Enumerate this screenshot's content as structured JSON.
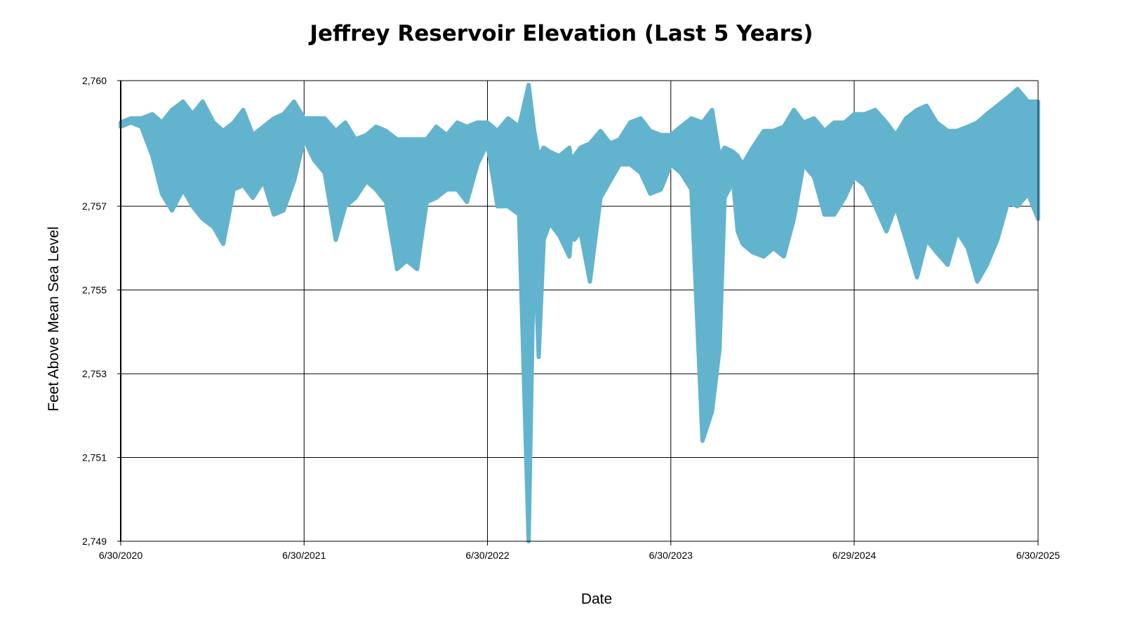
{
  "chart_data": {
    "type": "area",
    "title": "Jeffrey Reservoir Elevation (Last 5 Years)",
    "xlabel": "Date",
    "ylabel": "Feet Above Mean Sea Level",
    "ylim": [
      2749,
      2760
    ],
    "yticks": [
      2749,
      2751,
      2753,
      2755,
      2757,
      2760
    ],
    "ytick_labels": [
      "2,749",
      "2,751",
      "2,753",
      "2,755",
      "2,757",
      "2,760"
    ],
    "xlim": [
      "2020-06-30",
      "2025-06-30"
    ],
    "xticks": [
      "2020-06-30",
      "2021-06-30",
      "2022-06-30",
      "2023-06-30",
      "2024-06-29",
      "2025-06-30"
    ],
    "xtick_labels": [
      "6/30/2020",
      "6/30/2021",
      "6/30/2022",
      "6/30/2023",
      "6/29/2024",
      "6/30/2025"
    ],
    "grid": true,
    "color": "#62B4CE",
    "series": [
      {
        "x": [
          "2020-06-30",
          "2020-07-20",
          "2020-08-10",
          "2020-09-01",
          "2020-09-20",
          "2020-10-10",
          "2020-11-01",
          "2020-11-20",
          "2020-12-10",
          "2021-01-01",
          "2021-01-20",
          "2021-02-10",
          "2021-03-01",
          "2021-03-20",
          "2021-04-10",
          "2021-05-01",
          "2021-05-20",
          "2021-06-10",
          "2021-06-30",
          "2021-07-20",
          "2021-08-10",
          "2021-09-01",
          "2021-09-20",
          "2021-10-10",
          "2021-11-01",
          "2021-11-20",
          "2021-12-10",
          "2022-01-01",
          "2022-01-20",
          "2022-02-10",
          "2022-03-01",
          "2022-03-20",
          "2022-04-10",
          "2022-05-01",
          "2022-05-20",
          "2022-06-10",
          "2022-06-30",
          "2022-07-20",
          "2022-08-10",
          "2022-09-01",
          "2022-09-20",
          "2022-10-01",
          "2022-10-10",
          "2022-10-20",
          "2022-11-01",
          "2022-11-20",
          "2022-12-10",
          "2022-12-15",
          "2022-12-20",
          "2023-01-01",
          "2023-01-20",
          "2023-02-10",
          "2023-03-01",
          "2023-03-20",
          "2023-04-10",
          "2023-05-01",
          "2023-05-20",
          "2023-06-10",
          "2023-06-30",
          "2023-07-20",
          "2023-08-10",
          "2023-09-01",
          "2023-09-20",
          "2023-10-05",
          "2023-10-15",
          "2023-11-01",
          "2023-11-10",
          "2023-11-20",
          "2023-12-10",
          "2024-01-01",
          "2024-01-20",
          "2024-02-10",
          "2024-03-01",
          "2024-03-20",
          "2024-04-10",
          "2024-05-01",
          "2024-05-20",
          "2024-06-10",
          "2024-06-29",
          "2024-07-20",
          "2024-08-10",
          "2024-09-01",
          "2024-09-20",
          "2024-10-10",
          "2024-11-01",
          "2024-11-20",
          "2024-12-10",
          "2025-01-01",
          "2025-01-20",
          "2025-02-10",
          "2025-03-01",
          "2025-03-20",
          "2025-04-10",
          "2025-05-01",
          "2025-05-20",
          "2025-06-10",
          "2025-06-30"
        ],
        "high": [
          2759.0,
          2759.1,
          2759.1,
          2759.2,
          2759.0,
          2759.3,
          2759.5,
          2759.2,
          2759.5,
          2759.0,
          2758.8,
          2759.0,
          2759.3,
          2758.7,
          2758.9,
          2759.1,
          2759.2,
          2759.5,
          2759.1,
          2759.1,
          2759.1,
          2758.8,
          2759.0,
          2758.6,
          2758.7,
          2758.9,
          2758.8,
          2758.6,
          2758.6,
          2758.6,
          2758.6,
          2758.9,
          2758.7,
          2759.0,
          2758.9,
          2759.0,
          2759.0,
          2758.8,
          2759.1,
          2758.9,
          2759.9,
          2758.8,
          2758.2,
          2758.4,
          2758.3,
          2758.2,
          2758.4,
          2758.0,
          2758.2,
          2758.4,
          2758.5,
          2758.8,
          2758.5,
          2758.6,
          2759.0,
          2759.1,
          2758.8,
          2758.7,
          2758.7,
          2758.9,
          2759.1,
          2759.0,
          2759.3,
          2758.2,
          2758.4,
          2758.3,
          2758.2,
          2758.0,
          2758.4,
          2758.8,
          2758.8,
          2758.9,
          2759.3,
          2759.0,
          2759.1,
          2758.8,
          2759.0,
          2759.0,
          2759.2,
          2759.2,
          2759.3,
          2759.0,
          2758.7,
          2759.1,
          2759.3,
          2759.4,
          2759.0,
          2758.8,
          2758.8,
          2758.9,
          2759.0,
          2759.2,
          2759.4,
          2759.6,
          2759.8,
          2759.5,
          2759.5
        ],
        "low": [
          2758.9,
          2759.0,
          2758.9,
          2758.2,
          2757.3,
          2756.9,
          2757.4,
          2757.0,
          2756.7,
          2756.5,
          2756.1,
          2757.4,
          2757.5,
          2757.2,
          2757.6,
          2756.8,
          2756.9,
          2757.6,
          2758.6,
          2758.1,
          2757.8,
          2756.2,
          2757.0,
          2757.2,
          2757.6,
          2757.4,
          2757.1,
          2755.5,
          2755.7,
          2755.5,
          2757.1,
          2757.2,
          2757.4,
          2757.4,
          2757.1,
          2758.0,
          2758.5,
          2757.0,
          2757.0,
          2756.8,
          2749.0,
          2756.3,
          2753.4,
          2756.2,
          2756.6,
          2756.3,
          2755.8,
          2756.5,
          2756.2,
          2756.4,
          2755.2,
          2757.2,
          2757.6,
          2758.0,
          2758.0,
          2757.8,
          2757.3,
          2757.4,
          2758.0,
          2757.8,
          2757.4,
          2751.4,
          2752.1,
          2753.6,
          2757.2,
          2757.6,
          2756.4,
          2756.1,
          2755.9,
          2755.8,
          2756.0,
          2755.8,
          2756.7,
          2758.0,
          2757.7,
          2756.8,
          2756.8,
          2757.2,
          2757.7,
          2757.5,
          2757.0,
          2756.4,
          2757.0,
          2756.2,
          2755.3,
          2756.2,
          2755.9,
          2755.6,
          2756.4,
          2756.0,
          2755.2,
          2755.6,
          2756.2,
          2757.1,
          2757.0,
          2757.3,
          2756.7
        ]
      }
    ]
  }
}
